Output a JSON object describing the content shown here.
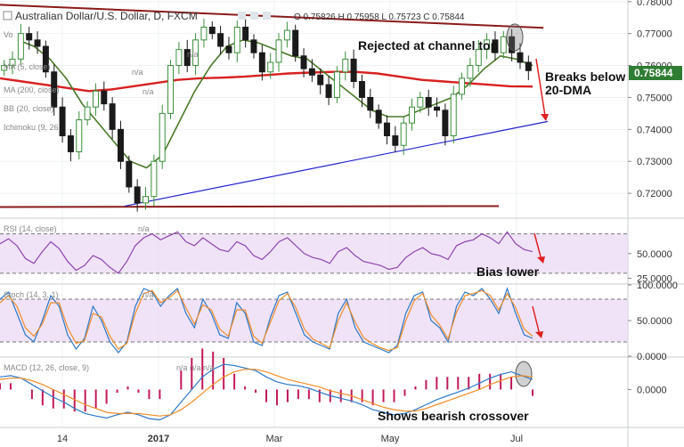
{
  "header": {
    "symbol": "Australian Dollar/U.S. Dollar, D, FXCM",
    "ohlc": "O 0.75826 H 0.75958 L 0.75723 C 0.75844"
  },
  "indicators": {
    "vol": "Vo",
    "ma_short": "MA (5, close)",
    "ma200": "MA (200, close)",
    "bb": "BB (20, close)",
    "ichimoku": "Ichimoku (9, 26",
    "na": "n/a"
  },
  "annotations": {
    "rejected": "Rejected at channel top",
    "breaks_line1": "Breaks below",
    "breaks_line2": "20-DMA",
    "bias": "Bias lower",
    "bearish": "Shows bearish crossover"
  },
  "price_badge": "0.75844",
  "colors": {
    "up": "#3a8f3a",
    "down": "#1a1a1a",
    "ma200": "#d82020",
    "ma20": "#4b7a2a",
    "trendline": "#2222cc",
    "channel": "#8b1a1a",
    "osc_fill": "#e9d7f5",
    "macd_line": "#2d78c8",
    "signal_line": "#f08c28",
    "hist": "#c2185b",
    "annotation_arrow": "#e02020",
    "badge": "#2e7d32"
  },
  "chart_data": {
    "type": "candlestick",
    "x_ticks": [
      "14",
      "2017",
      "Mar",
      "May",
      "Jul"
    ],
    "price_axis": {
      "ticks": [
        "0.78000",
        "0.77000",
        "0.76000",
        "0.75000",
        "0.74000",
        "0.73000",
        "0.72000"
      ],
      "ylim": [
        0.7125,
        0.7805
      ]
    },
    "price_series": [
      0.76,
      0.762,
      0.77,
      0.768,
      0.766,
      0.758,
      0.747,
      0.738,
      0.733,
      0.743,
      0.747,
      0.752,
      0.748,
      0.74,
      0.73,
      0.722,
      0.717,
      0.719,
      0.73,
      0.745,
      0.76,
      0.765,
      0.76,
      0.768,
      0.772,
      0.77,
      0.766,
      0.764,
      0.772,
      0.768,
      0.764,
      0.758,
      0.761,
      0.768,
      0.771,
      0.763,
      0.759,
      0.757,
      0.754,
      0.75,
      0.758,
      0.762,
      0.755,
      0.75,
      0.746,
      0.742,
      0.738,
      0.735,
      0.742,
      0.747,
      0.75,
      0.747,
      0.746,
      0.738,
      0.751,
      0.756,
      0.76,
      0.765,
      0.768,
      0.764,
      0.769,
      0.764,
      0.761,
      0.7584
    ],
    "ma200_series": [
      0.756,
      0.755,
      0.754,
      0.753,
      0.752,
      0.7525,
      0.7535,
      0.7545,
      0.7555,
      0.756,
      0.7562,
      0.7565,
      0.757,
      0.7575,
      0.7578,
      0.758,
      0.758,
      0.7575,
      0.7565,
      0.7555,
      0.755,
      0.7545,
      0.754,
      0.7535,
      0.7534
    ],
    "ma20_series": [
      0.768,
      0.766,
      0.762,
      0.756,
      0.748,
      0.742,
      0.736,
      0.73,
      0.728,
      0.732,
      0.742,
      0.752,
      0.76,
      0.766,
      0.768,
      0.767,
      0.765,
      0.763,
      0.762,
      0.758,
      0.754,
      0.75,
      0.746,
      0.744,
      0.744,
      0.746,
      0.748,
      0.75,
      0.754,
      0.759,
      0.763,
      0.762,
      0.76
    ],
    "trendline": [
      [
        0.0,
        0.716
      ],
      [
        1.0,
        0.7425
      ]
    ],
    "channel_top": [
      [
        0.0,
        0.779
      ],
      [
        0.85,
        0.7718
      ]
    ],
    "channel_bottom": [
      [
        0.0,
        0.7157
      ],
      [
        0.78,
        0.716
      ]
    ],
    "rsi": {
      "label": "RSI (14, close)",
      "ticks": [
        "50.0000",
        "25.0000"
      ],
      "ylim": [
        20,
        85
      ],
      "band": [
        30,
        70
      ],
      "values": [
        60,
        65,
        58,
        45,
        40,
        52,
        62,
        55,
        42,
        33,
        38,
        48,
        44,
        36,
        30,
        42,
        58,
        66,
        70,
        64,
        68,
        72,
        62,
        58,
        66,
        60,
        54,
        52,
        62,
        58,
        48,
        44,
        52,
        62,
        66,
        58,
        50,
        46,
        44,
        40,
        52,
        56,
        48,
        42,
        40,
        38,
        34,
        36,
        46,
        52,
        56,
        50,
        48,
        44,
        58,
        62,
        64,
        70,
        66,
        60,
        72,
        60,
        54,
        52
      ]
    },
    "stoch": {
      "label": "Stoch (14, 3, 1)",
      "ticks": [
        "100.0000",
        "50.0000",
        "0.0000"
      ],
      "ylim": [
        0,
        100
      ],
      "band": [
        20,
        80
      ],
      "k": [
        80,
        90,
        60,
        30,
        20,
        50,
        85,
        70,
        30,
        10,
        25,
        70,
        50,
        20,
        5,
        20,
        70,
        95,
        90,
        70,
        85,
        95,
        60,
        40,
        80,
        60,
        30,
        25,
        75,
        60,
        20,
        15,
        55,
        85,
        90,
        60,
        30,
        20,
        15,
        10,
        60,
        80,
        40,
        20,
        15,
        10,
        5,
        15,
        60,
        85,
        90,
        50,
        40,
        20,
        70,
        90,
        85,
        95,
        80,
        60,
        95,
        60,
        30,
        25
      ],
      "d": [
        75,
        85,
        70,
        40,
        28,
        45,
        75,
        75,
        40,
        18,
        22,
        60,
        55,
        28,
        10,
        18,
        60,
        88,
        92,
        75,
        82,
        92,
        68,
        45,
        72,
        65,
        38,
        28,
        65,
        65,
        28,
        18,
        48,
        78,
        88,
        68,
        38,
        24,
        18,
        12,
        50,
        75,
        48,
        26,
        18,
        12,
        8,
        12,
        50,
        78,
        88,
        58,
        44,
        24,
        62,
        85,
        88,
        92,
        85,
        65,
        88,
        68,
        38,
        28
      ]
    },
    "macd": {
      "label": "MACD (12, 26, close, 9)",
      "ticks": [
        "0.0000"
      ],
      "ylim": [
        -0.006,
        0.005
      ],
      "macd": [
        0.002,
        0.0022,
        0.0018,
        0.0008,
        -0.0002,
        -0.0012,
        -0.002,
        -0.003,
        -0.0038,
        -0.0042,
        -0.0045,
        -0.004,
        -0.0036,
        -0.004,
        -0.0046,
        -0.0048,
        -0.004,
        -0.002,
        0.0,
        0.002,
        0.0032,
        0.004,
        0.0038,
        0.0034,
        0.003,
        0.002,
        0.0012,
        0.0008,
        0.0006,
        0.0002,
        -0.0004,
        -0.001,
        -0.0014,
        -0.0018,
        -0.0024,
        -0.0032,
        -0.0036,
        -0.004,
        -0.0038,
        -0.0032,
        -0.0024,
        -0.0016,
        -0.001,
        -0.0004,
        0.0002,
        0.001,
        0.0018,
        0.0024,
        0.0028,
        0.0022,
        0.0016
      ],
      "signal": [
        0.0016,
        0.0018,
        0.0018,
        0.0014,
        0.0008,
        0.0,
        -0.0008,
        -0.0016,
        -0.0024,
        -0.003,
        -0.0036,
        -0.0038,
        -0.0038,
        -0.0038,
        -0.004,
        -0.0042,
        -0.004,
        -0.0032,
        -0.002,
        -0.0006,
        0.0008,
        0.002,
        0.0028,
        0.0032,
        0.0032,
        0.0028,
        0.0022,
        0.0016,
        0.0012,
        0.0008,
        0.0004,
        -0.0002,
        -0.0006,
        -0.001,
        -0.0016,
        -0.0022,
        -0.0028,
        -0.0032,
        -0.0034,
        -0.0034,
        -0.003,
        -0.0024,
        -0.0018,
        -0.0012,
        -0.0006,
        0.0,
        0.0008,
        0.0014,
        0.002,
        0.0022,
        0.002
      ]
    }
  }
}
